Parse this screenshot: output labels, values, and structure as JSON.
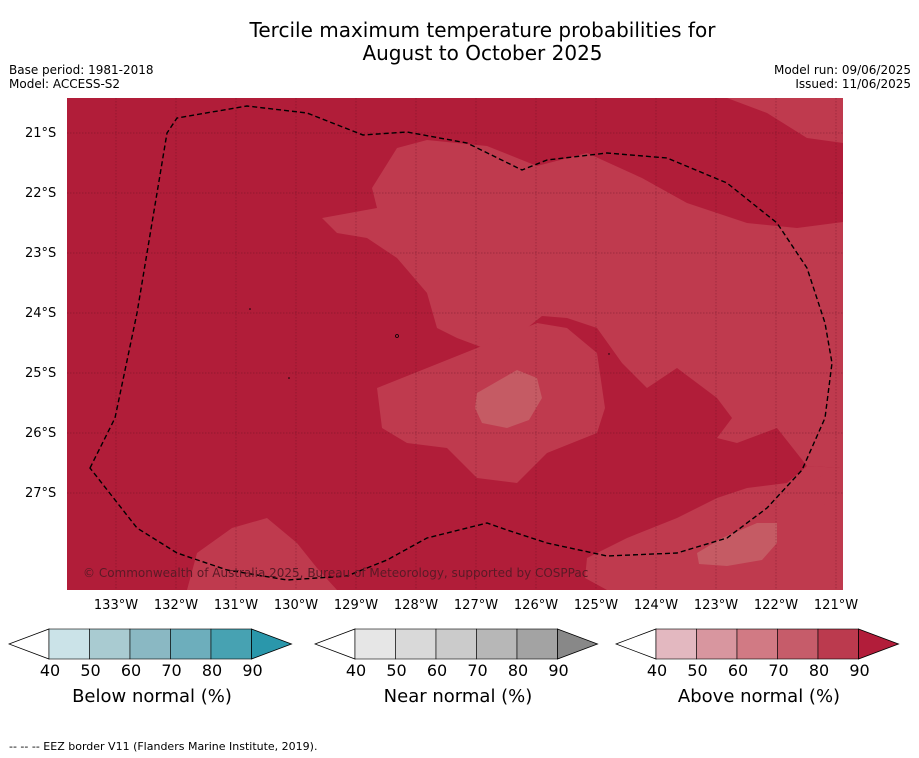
{
  "title_line1": "Tercile maximum temperature probabilities for",
  "title_line2": "August to October 2025",
  "base_period": "Base period: 1981-2018",
  "model": "Model: ACCESS-S2",
  "model_run": "Model run: 09/06/2025",
  "issued": "Issued: 11/06/2025",
  "copyright": "© Commonwealth of Australia 2025, Bureau of Meteorology, supported by COSPPac",
  "footer": "--  --  -- EEZ border V11 (Flanders Marine Institute, 2019).",
  "latitude_labels": [
    "21°S",
    "22°S",
    "23°S",
    "24°S",
    "25°S",
    "26°S",
    "27°S"
  ],
  "longitude_labels": [
    "133°W",
    "132°W",
    "131°W",
    "130°W",
    "129°W",
    "128°W",
    "127°W",
    "126°W",
    "125°W",
    "124°W",
    "123°W",
    "122°W",
    "121°W"
  ],
  "colorbars": [
    {
      "title": "Below normal (%)",
      "ticks": [
        "40",
        "50",
        "60",
        "70",
        "80",
        "90"
      ],
      "colors": [
        "#cbe3e8",
        "#a9cbd1",
        "#8ab8c3",
        "#6daebc",
        "#47a2b2",
        "#2a97ab"
      ]
    },
    {
      "title": "Near normal (%)",
      "ticks": [
        "40",
        "50",
        "60",
        "70",
        "80",
        "90"
      ],
      "colors": [
        "#e6e6e6",
        "#d9d9d9",
        "#cbcbcb",
        "#b7b7b7",
        "#a3a3a3",
        "#888888"
      ]
    },
    {
      "title": "Above normal (%)",
      "ticks": [
        "40",
        "50",
        "60",
        "70",
        "80",
        "90"
      ],
      "colors": [
        "#e3b8c0",
        "#d8969f",
        "#d17a84",
        "#c65c6a",
        "#bb3a4e",
        "#b21d3a"
      ]
    }
  ],
  "map_colors": {
    "high": "#b11d39",
    "mid": "#bf3a4e",
    "low": "#c55b64"
  }
}
